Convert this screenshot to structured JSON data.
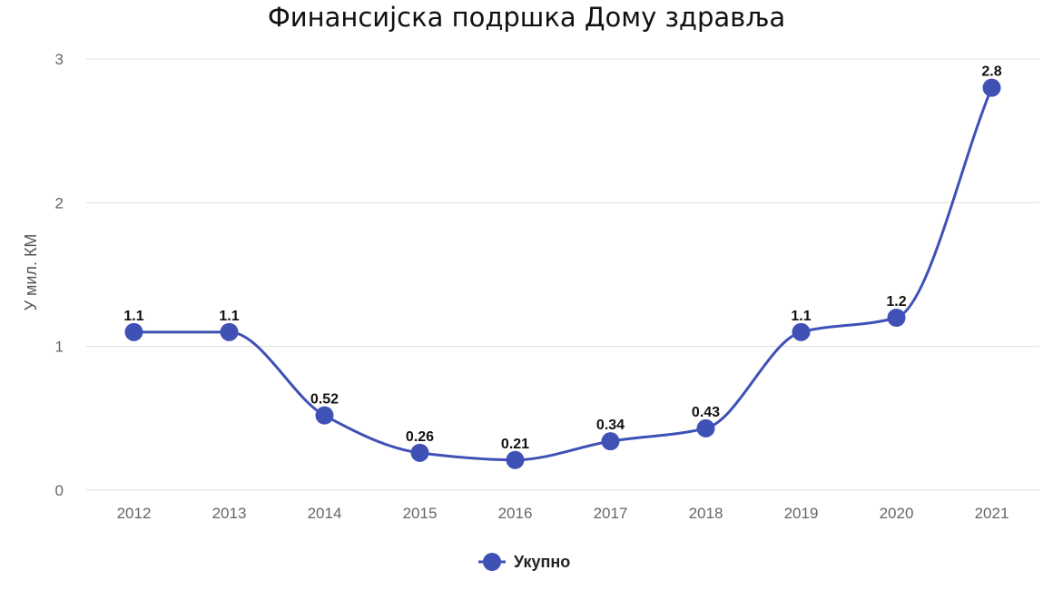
{
  "chart_data": {
    "type": "line",
    "title": "Финансијска подршка Дому здравља",
    "ylabel": "У мил. КМ",
    "xlabel": "",
    "categories": [
      "2012",
      "2013",
      "2014",
      "2015",
      "2016",
      "2017",
      "2018",
      "2019",
      "2020",
      "2021"
    ],
    "series": [
      {
        "name": "Укупно",
        "values": [
          1.1,
          1.1,
          0.52,
          0.26,
          0.21,
          0.34,
          0.43,
          1.1,
          1.2,
          2.8
        ]
      }
    ],
    "data_labels": [
      "1.1",
      "1.1",
      "0.52",
      "0.26",
      "0.21",
      "0.34",
      "0.43",
      "1.1",
      "1.2",
      "2.8"
    ],
    "ylim": [
      0,
      3
    ],
    "yticks": [
      "0",
      "1",
      "2",
      "3"
    ],
    "grid": true,
    "legend_position": "bottom-center",
    "colors": {
      "series": "#3f51b5",
      "grid": "#dddddd",
      "text": "#111111",
      "ticks": "#666666"
    }
  }
}
